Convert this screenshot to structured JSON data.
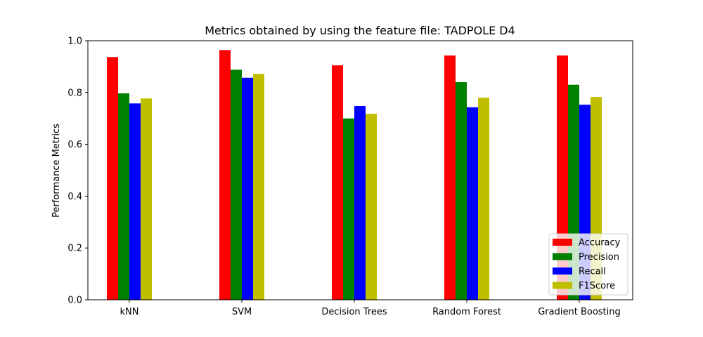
{
  "chart_data": {
    "type": "bar",
    "title": "Metrics obtained by using the feature file: TADPOLE D4",
    "xlabel": "",
    "ylabel": "Performance Metrics",
    "ylim": [
      0,
      1.0
    ],
    "yticks": [
      "0.0",
      "0.2",
      "0.4",
      "0.6",
      "0.8",
      "1.0"
    ],
    "categories": [
      "kNN",
      "SVM",
      "Decision Trees",
      "Random Forest",
      "Gradient Boosting"
    ],
    "series": [
      {
        "name": "Accuracy",
        "color": "#ff0000",
        "values": [
          0.937,
          0.964,
          0.905,
          0.943,
          0.943
        ]
      },
      {
        "name": "Precision",
        "color": "#008000",
        "values": [
          0.797,
          0.888,
          0.7,
          0.84,
          0.83
        ]
      },
      {
        "name": "Recall",
        "color": "#0000ff",
        "values": [
          0.758,
          0.857,
          0.748,
          0.743,
          0.753
        ]
      },
      {
        "name": "F1Score",
        "color": "#bfbf00",
        "values": [
          0.777,
          0.872,
          0.718,
          0.78,
          0.783
        ]
      }
    ],
    "legend_position": "lower-right",
    "grid": false
  }
}
